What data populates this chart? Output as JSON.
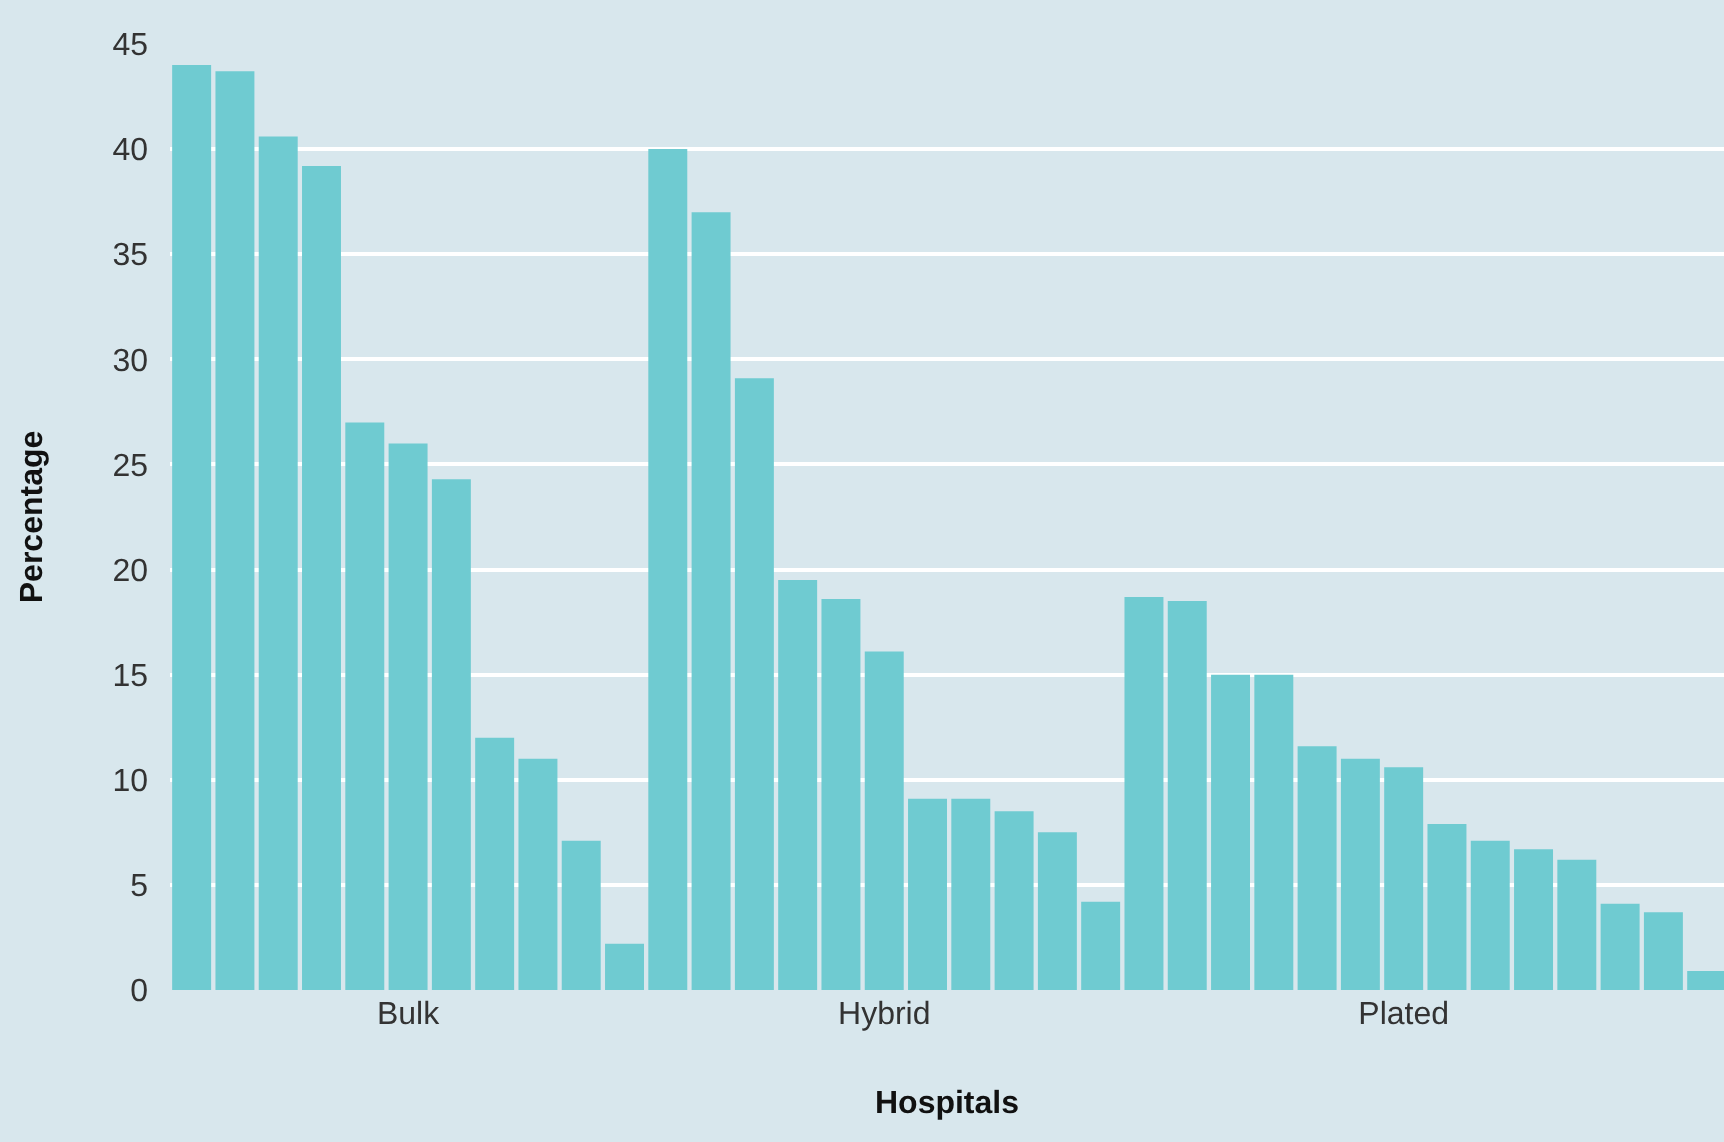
{
  "chart_data": {
    "type": "bar",
    "xlabel": "Hospitals",
    "ylabel": "Percentage",
    "categories": [
      null,
      null,
      null,
      null,
      null,
      "Bulk",
      null,
      null,
      null,
      null,
      null,
      null,
      null,
      null,
      null,
      null,
      "Hybrid",
      null,
      null,
      null,
      null,
      null,
      null,
      null,
      null,
      null,
      null,
      null,
      "Plated",
      null,
      null,
      null,
      null,
      null,
      null,
      null
    ],
    "values": [
      44.0,
      43.7,
      40.6,
      39.2,
      27.0,
      26.0,
      24.3,
      12.0,
      11.0,
      7.1,
      2.2,
      40.0,
      37.0,
      29.1,
      19.5,
      18.6,
      16.1,
      9.1,
      9.1,
      8.5,
      7.5,
      4.2,
      18.7,
      18.5,
      15.0,
      15.0,
      11.6,
      11.0,
      10.6,
      7.9,
      7.1,
      6.7,
      6.2,
      4.1,
      3.7,
      0.9
    ],
    "color": "#6fcbd1",
    "ylim": [
      0,
      45
    ],
    "yticks": [
      0,
      5,
      10,
      15,
      20,
      25,
      30,
      35,
      40,
      45
    ],
    "grid": "y"
  }
}
